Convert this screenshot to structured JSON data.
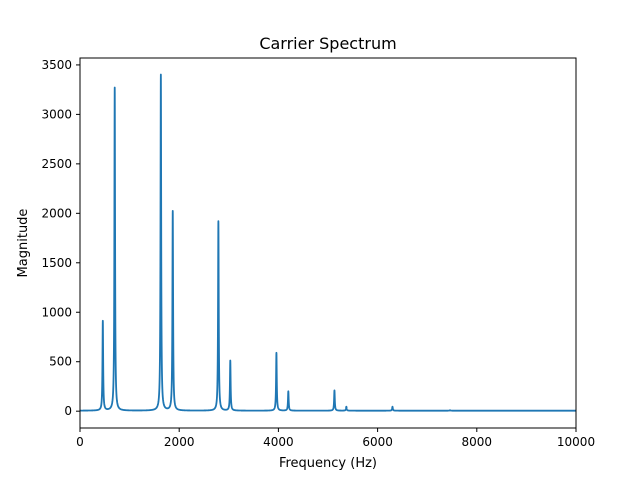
{
  "chart_data": {
    "type": "line",
    "title": "Carrier Spectrum",
    "xlabel": "Frequency (Hz)",
    "ylabel": "Magnitude",
    "xlim": [
      0,
      10000
    ],
    "ylim": [
      -170,
      3570
    ],
    "xticks": [
      0,
      2000,
      4000,
      6000,
      8000,
      10000
    ],
    "yticks": [
      0,
      500,
      1000,
      1500,
      2000,
      2500,
      3000,
      3500
    ],
    "grid": false,
    "line_color": "#1f77b4",
    "baseline": 5,
    "series": [
      {
        "peaks": [
          {
            "x": 460,
            "y": 910
          },
          {
            "x": 700,
            "y": 3270
          },
          {
            "x": 1630,
            "y": 3400
          },
          {
            "x": 1870,
            "y": 2020
          },
          {
            "x": 2790,
            "y": 1920
          },
          {
            "x": 3030,
            "y": 510
          },
          {
            "x": 3960,
            "y": 590
          },
          {
            "x": 4200,
            "y": 200
          },
          {
            "x": 5130,
            "y": 210
          },
          {
            "x": 5370,
            "y": 45
          },
          {
            "x": 6300,
            "y": 45
          },
          {
            "x": 7460,
            "y": 10
          }
        ]
      }
    ]
  }
}
